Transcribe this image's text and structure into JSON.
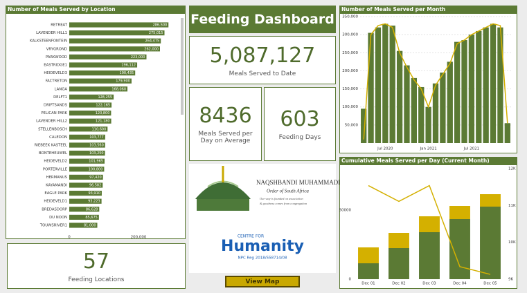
{
  "dashboard_title": "Feeding Dashboard",
  "kpis": [
    {
      "value": "5,087,127",
      "label": "Meals Served to Date"
    },
    {
      "value": "8436",
      "label": "Meals Served  per Day on Average"
    },
    {
      "value": "603",
      "label": "Feeding Days"
    },
    {
      "value": "57",
      "label": "Feeding Locations"
    }
  ],
  "logos": {
    "naqshbandi": {
      "name": "NAQSHBANDI MUHAMMADI",
      "subtitle": "Order of South Africa",
      "motto": [
        "Our way is founded on association",
        "& goodness comes from congregation"
      ]
    },
    "humanity": {
      "prefix": "CENTRE FOR",
      "name": "Humanity",
      "registration": "NPC Reg  2018/558714/08"
    }
  },
  "button": "View Map",
  "chart_data": [
    {
      "type": "hbar",
      "title": "Number of Meals Served by Location",
      "categories": [
        "RETREAT",
        "LAVENDER HILL1",
        "KALKSTEENFONTEIN",
        "VRYGROND",
        "PARKWOOD",
        "EASTRIDGE1",
        "HEIDEVELD3",
        "FACTRETON",
        "LANGA",
        "DELFT1",
        "DRIFTSANDS",
        "PELICAN PARK",
        "LAVENDER HILL2",
        "STELLENBOSCH",
        "CALEDON",
        "RIEBEEK KASTEEL",
        "BONTEHEUWEL",
        "HEIDEVELD2",
        "PORTERVILLE",
        "HERMANUS",
        "KAYAMANDI",
        "EAGLE PARK",
        "HEIDEVELD1",
        "BREDASDORP",
        "DU NOON",
        "TOUWSRIVER1"
      ],
      "values": [
        286500,
        275015,
        264475,
        262000,
        223000,
        196112,
        190435,
        179900,
        168060,
        128255,
        122165,
        120800,
        121180,
        110600,
        103777,
        103560,
        103250,
        101965,
        100800,
        97420,
        96582,
        93910,
        93223,
        86628,
        85675,
        81000
      ],
      "value_labels": [
        "286,500",
        "275,015",
        "264,475",
        "262,000",
        "223,000",
        "196,112",
        "190,435",
        "179,900",
        "168,060",
        "128,255",
        "122,165",
        "120,800",
        "121,180",
        "110,600",
        "103,777",
        "103,560",
        "103,250",
        "101,965",
        "100,800",
        "97,420",
        "96,582",
        "93,910",
        "93,223",
        "86,628",
        "85,675",
        "81,000"
      ],
      "color": "#5b7a34",
      "xlim": [
        0,
        320000
      ],
      "xticks": [
        0,
        {
          "value": 200000,
          "label": "200,000"
        }
      ],
      "grid": false
    },
    {
      "type": "bar",
      "title": "Number of Meals Served per Month",
      "categories": [
        null,
        null,
        null,
        "Jul 2020",
        null,
        null,
        null,
        null,
        null,
        "Jan 2021",
        null,
        null,
        null,
        null,
        null,
        "Jul 2021",
        null,
        null,
        null,
        null,
        null
      ],
      "series": [
        {
          "mark": "bar",
          "color": "#5b7a34",
          "values": [
            95000,
            305000,
            320000,
            330000,
            325000,
            255000,
            215000,
            180000,
            155000,
            100000,
            165000,
            195000,
            225000,
            280000,
            285000,
            300000,
            310000,
            320000,
            330000,
            320000,
            55000
          ]
        },
        {
          "mark": "line",
          "color": "#d4b000",
          "values": [
            10000,
            300000,
            325000,
            330000,
            320000,
            250000,
            210000,
            175000,
            150000,
            100000,
            160000,
            190000,
            220000,
            275000,
            285000,
            300000,
            310000,
            320000,
            330000,
            325000,
            55000
          ]
        }
      ],
      "ylim": [
        0,
        350000
      ],
      "yticks": [
        {
          "value": 50000,
          "label": "50,000"
        },
        {
          "value": 100000,
          "label": "100,000"
        },
        {
          "value": 150000,
          "label": "150,000"
        },
        {
          "value": 200000,
          "label": "200,000"
        },
        {
          "value": 250000,
          "label": "250,000"
        },
        {
          "value": 300000,
          "label": "300,000"
        },
        {
          "value": 350000,
          "label": "350,000"
        }
      ],
      "grid": true
    },
    {
      "type": "stacked",
      "title": "Cumulative Meals Served per Day (Current Month)",
      "categories": [
        "Dec 01",
        "Dec 02",
        "Dec 03",
        "Dec 04",
        "Dec 05"
      ],
      "series": [
        {
          "mark": "bar",
          "color": "#5b7a34",
          "values": [
            11500,
            22500,
            34000,
            43500,
            52500
          ]
        },
        {
          "mark": "bar",
          "color": "#d4b000",
          "values": [
            11500,
            11000,
            11500,
            9500,
            9000
          ]
        },
        {
          "mark": "line",
          "axis": "y2",
          "color": "#d4b000",
          "values": [
            11540,
            11110,
            11540,
            9340,
            9130
          ]
        }
      ],
      "ylim": [
        0,
        80000
      ],
      "yticks": [
        0,
        50000
      ],
      "y2lim": [
        9000,
        12000
      ],
      "y2ticks": [
        {
          "value": 9000,
          "label": "9K"
        },
        {
          "value": 10000,
          "label": "10K"
        },
        {
          "value": 11000,
          "label": "11K"
        },
        {
          "value": 12000,
          "label": "12K"
        }
      ],
      "grid": false
    }
  ]
}
